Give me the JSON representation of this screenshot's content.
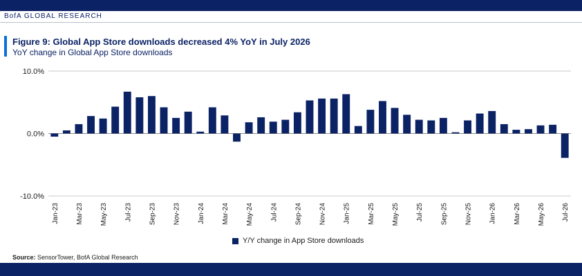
{
  "header": {
    "brand": "BofA GLOBAL RESEARCH",
    "bar_color": "#0b2265",
    "accent_color": "#0a6fd6"
  },
  "figure": {
    "title": "Figure 9: Global App Store downloads decreased 4% YoY in July 2026",
    "subtitle": "YoY change in Global App Store downloads"
  },
  "source": {
    "label": "Source:",
    "text": " SensorTower, BofA Global Research"
  },
  "chart_data": {
    "type": "bar",
    "title": "Figure 9: Global App Store downloads decreased 4% YoY in July 2026",
    "subtitle": "YoY change in Global App Store downloads",
    "ylim": [
      -10,
      10
    ],
    "yticks": [
      10,
      0,
      -10
    ],
    "ytick_labels": [
      "10.0%",
      "0.0%",
      "-10.0%"
    ],
    "grid": true,
    "legend": "bottom-center",
    "bar_color": "#0b2265",
    "categories": [
      "Jan-23",
      "Feb-23",
      "Mar-23",
      "Apr-23",
      "May-23",
      "Jun-23",
      "Jul-23",
      "Aug-23",
      "Sep-23",
      "Oct-23",
      "Nov-23",
      "Dec-23",
      "Jan-24",
      "Feb-24",
      "Mar-24",
      "Apr-24",
      "May-24",
      "Jun-24",
      "Jul-24",
      "Aug-24",
      "Sep-24",
      "Oct-24",
      "Nov-24",
      "Dec-24",
      "Jan-25",
      "Feb-25",
      "Mar-25",
      "Apr-25",
      "May-25",
      "Jun-25",
      "Jul-25",
      "Aug-25",
      "Sep-25",
      "Oct-25",
      "Nov-25",
      "Dec-25",
      "Jan-26",
      "Feb-26",
      "Mar-26",
      "Apr-26",
      "May-26",
      "Jun-26",
      "Jul-26"
    ],
    "tick_labels": [
      "Jan-23",
      "Mar-23",
      "May-23",
      "Jul-23",
      "Sep-23",
      "Nov-23",
      "Jan-24",
      "Mar-24",
      "May-24",
      "Jul-24",
      "Sep-24",
      "Nov-24",
      "Jan-25",
      "Mar-25",
      "May-25",
      "Jul-25",
      "Sep-25",
      "Nov-25",
      "Jan-26",
      "Mar-26",
      "May-26",
      "Jul-26"
    ],
    "series": [
      {
        "name": "Y/Y change in App Store downloads",
        "values": [
          -0.5,
          0.5,
          1.5,
          2.8,
          2.4,
          4.3,
          6.7,
          5.8,
          6.0,
          4.2,
          2.5,
          3.5,
          0.3,
          4.2,
          2.9,
          -1.3,
          1.8,
          2.6,
          1.9,
          2.2,
          3.4,
          5.3,
          5.6,
          5.6,
          6.3,
          1.2,
          3.8,
          5.2,
          4.1,
          3.0,
          2.2,
          2.1,
          2.5,
          0.2,
          2.1,
          3.2,
          3.6,
          1.5,
          0.6,
          0.7,
          1.3,
          1.4,
          -3.9
        ]
      }
    ]
  }
}
